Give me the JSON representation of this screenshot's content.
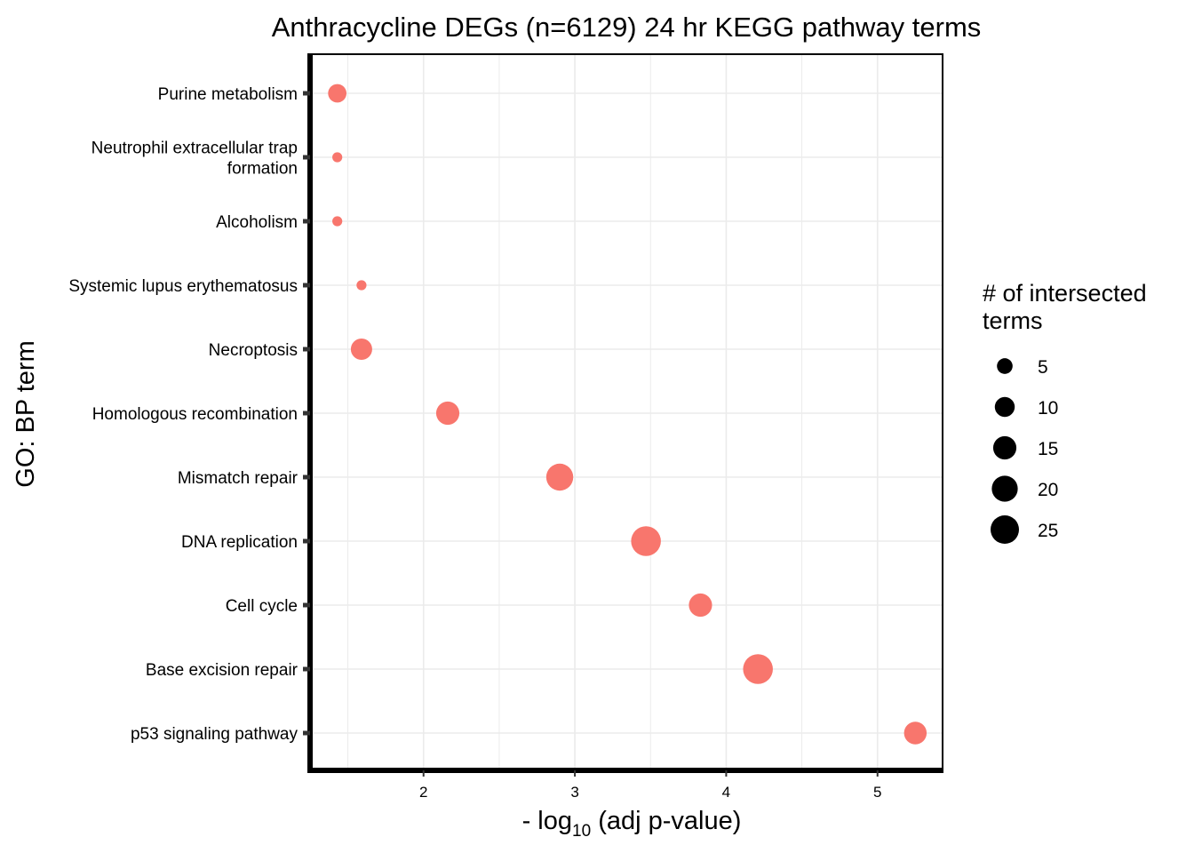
{
  "chart_data": {
    "type": "scatter",
    "title": "Anthracycline DEGs (n=6129) 24 hr KEGG pathway terms",
    "xlabel": {
      "prefix": "- log",
      "subscript": "10",
      "suffix": " (adj p-value)"
    },
    "ylabel": "GO: BP term",
    "xlim": [
      1.25,
      5.43
    ],
    "x_ticks": [
      2,
      3,
      4,
      5
    ],
    "grid": true,
    "point_color": "#F8766D",
    "categories": [
      {
        "lines": [
          "Purine metabolism"
        ]
      },
      {
        "lines": [
          "Neutrophil extracellular trap",
          "formation"
        ]
      },
      {
        "lines": [
          "Alcoholism"
        ]
      },
      {
        "lines": [
          "Systemic lupus erythematosus"
        ]
      },
      {
        "lines": [
          "Necroptosis"
        ]
      },
      {
        "lines": [
          "Homologous recombination"
        ]
      },
      {
        "lines": [
          "Mismatch repair"
        ]
      },
      {
        "lines": [
          "DNA replication"
        ]
      },
      {
        "lines": [
          "Cell cycle"
        ]
      },
      {
        "lines": [
          "Base excision repair"
        ]
      },
      {
        "lines": [
          "p53 signaling pathway"
        ]
      }
    ],
    "points": [
      {
        "term": "Purine metabolism",
        "x": 1.43,
        "size": 8
      },
      {
        "term": "Neutrophil extracellular trap formation",
        "x": 1.43,
        "size": 1
      },
      {
        "term": "Alcoholism",
        "x": 1.43,
        "size": 1
      },
      {
        "term": "Systemic lupus erythematosus",
        "x": 1.59,
        "size": 1
      },
      {
        "term": "Necroptosis",
        "x": 1.59,
        "size": 12
      },
      {
        "term": "Homologous recombination",
        "x": 2.16,
        "size": 15
      },
      {
        "term": "Mismatch repair",
        "x": 2.9,
        "size": 22
      },
      {
        "term": "DNA replication",
        "x": 3.47,
        "size": 28
      },
      {
        "term": "Cell cycle",
        "x": 3.83,
        "size": 15
      },
      {
        "term": "Base excision repair",
        "x": 4.21,
        "size": 28
      },
      {
        "term": "p53 signaling pathway",
        "x": 5.25,
        "size": 14
      }
    ],
    "legend": {
      "title_lines": [
        "# of intersected",
        " terms"
      ],
      "placement": "right",
      "sizes": [
        5,
        10,
        15,
        20,
        25
      ]
    }
  }
}
